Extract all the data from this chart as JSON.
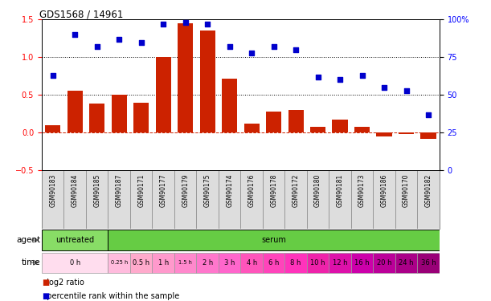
{
  "title": "GDS1568 / 14961",
  "samples": [
    "GSM90183",
    "GSM90184",
    "GSM90185",
    "GSM90187",
    "GSM90171",
    "GSM90177",
    "GSM90179",
    "GSM90175",
    "GSM90174",
    "GSM90176",
    "GSM90178",
    "GSM90172",
    "GSM90180",
    "GSM90181",
    "GSM90173",
    "GSM90186",
    "GSM90170",
    "GSM90182"
  ],
  "log2_ratio": [
    0.1,
    0.55,
    0.38,
    0.5,
    0.4,
    1.0,
    1.45,
    1.35,
    0.72,
    0.12,
    0.28,
    0.3,
    0.07,
    0.17,
    0.07,
    -0.05,
    -0.02,
    -0.08
  ],
  "percentile_rank": [
    63,
    90,
    82,
    87,
    85,
    97,
    98,
    97,
    82,
    78,
    82,
    80,
    62,
    60,
    63,
    55,
    53,
    37
  ],
  "ylim_left": [
    -0.5,
    1.5
  ],
  "ylim_right": [
    0,
    100
  ],
  "yticks_left": [
    -0.5,
    0.0,
    0.5,
    1.0,
    1.5
  ],
  "yticks_right": [
    0,
    25,
    50,
    75,
    100
  ],
  "hlines": [
    0.5,
    1.0
  ],
  "bar_color": "#cc2200",
  "scatter_color": "#0000cc",
  "agent_untreated_color": "#88dd66",
  "agent_serum_color": "#66cc44",
  "time_block_color_0h": "#ffddee",
  "time_block_color_serum": "#ff99cc",
  "time_blocks": [
    {
      "label": "0 h",
      "start": 0,
      "end": 3,
      "color": "#ffddee"
    },
    {
      "label": "0.25 h",
      "start": 3,
      "end": 4,
      "color": "#ffbbdd"
    },
    {
      "label": "0.5 h",
      "start": 4,
      "end": 5,
      "color": "#ffaacc"
    },
    {
      "label": "1 h",
      "start": 5,
      "end": 6,
      "color": "#ff99cc"
    },
    {
      "label": "1.5 h",
      "start": 6,
      "end": 7,
      "color": "#ff88cc"
    },
    {
      "label": "2 h",
      "start": 7,
      "end": 8,
      "color": "#ff77cc"
    },
    {
      "label": "3 h",
      "start": 8,
      "end": 9,
      "color": "#ff66cc"
    },
    {
      "label": "4 h",
      "start": 9,
      "end": 10,
      "color": "#ff55bb"
    },
    {
      "label": "6 h",
      "start": 10,
      "end": 11,
      "color": "#ff44bb"
    },
    {
      "label": "8 h",
      "start": 11,
      "end": 12,
      "color": "#ff33bb"
    },
    {
      "label": "10 h",
      "start": 12,
      "end": 13,
      "color": "#ee22aa"
    },
    {
      "label": "12 h",
      "start": 13,
      "end": 14,
      "color": "#dd11aa"
    },
    {
      "label": "16 h",
      "start": 14,
      "end": 15,
      "color": "#cc00aa"
    },
    {
      "label": "20 h",
      "start": 15,
      "end": 16,
      "color": "#bb0099"
    },
    {
      "label": "24 h",
      "start": 16,
      "end": 17,
      "color": "#aa0088"
    },
    {
      "label": "36 h",
      "start": 17,
      "end": 18,
      "color": "#990077"
    }
  ]
}
